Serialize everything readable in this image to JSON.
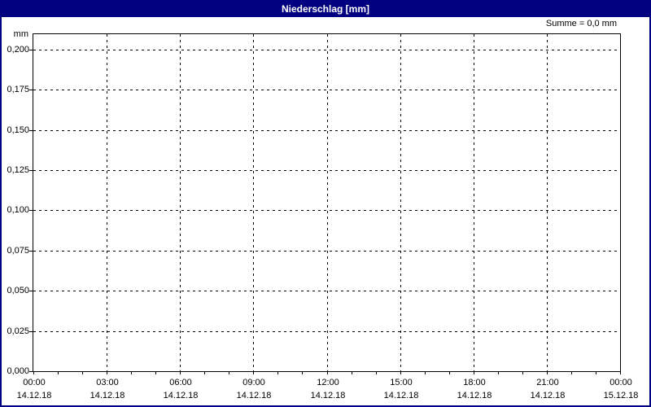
{
  "window": {
    "title": "Niederschlag [mm]"
  },
  "annotations": {
    "sum": "Summe = 0,0 mm"
  },
  "colors": {
    "titlebar_bg": "#000080",
    "titlebar_text": "#FFFFFF",
    "frame": "#000080",
    "bg": "#FFFFFF",
    "plot_border": "#000000",
    "grid": "#000000",
    "text": "#000000"
  },
  "chart_data": {
    "type": "line",
    "title": "Niederschlag [mm]",
    "ylabel": "mm",
    "xlabel": "",
    "legend": "none",
    "grid": "dashed",
    "sum_annotation": "Summe = 0,0 mm",
    "ylim": [
      0,
      0.2096
    ],
    "y_tick_step": 0.025,
    "y_ticks": [
      {
        "label": "0,200",
        "value": 0.2
      },
      {
        "label": "0,175",
        "value": 0.175
      },
      {
        "label": "0,150",
        "value": 0.15
      },
      {
        "label": "0,125",
        "value": 0.125
      },
      {
        "label": "0,100",
        "value": 0.1
      },
      {
        "label": "0,075",
        "value": 0.075
      },
      {
        "label": "0,050",
        "value": 0.05
      },
      {
        "label": "0,025",
        "value": 0.025
      },
      {
        "label": "0,000",
        "value": 0.0
      }
    ],
    "x_hours_total": 24,
    "x_major_step_hours": 3,
    "x_minor_step_hours": 1,
    "x_ticks": [
      {
        "hour": 0,
        "time": "00:00",
        "date": "14.12.18"
      },
      {
        "hour": 3,
        "time": "03:00",
        "date": "14.12.18"
      },
      {
        "hour": 6,
        "time": "06:00",
        "date": "14.12.18"
      },
      {
        "hour": 9,
        "time": "09:00",
        "date": "14.12.18"
      },
      {
        "hour": 12,
        "time": "12:00",
        "date": "14.12.18"
      },
      {
        "hour": 15,
        "time": "15:00",
        "date": "14.12.18"
      },
      {
        "hour": 18,
        "time": "18:00",
        "date": "14.12.18"
      },
      {
        "hour": 21,
        "time": "21:00",
        "date": "14.12.18"
      },
      {
        "hour": 24,
        "time": "00:00",
        "date": "15.12.18"
      }
    ],
    "series": [
      {
        "name": "Niederschlag",
        "unit": "mm",
        "sum": "0,0",
        "points": []
      }
    ]
  }
}
